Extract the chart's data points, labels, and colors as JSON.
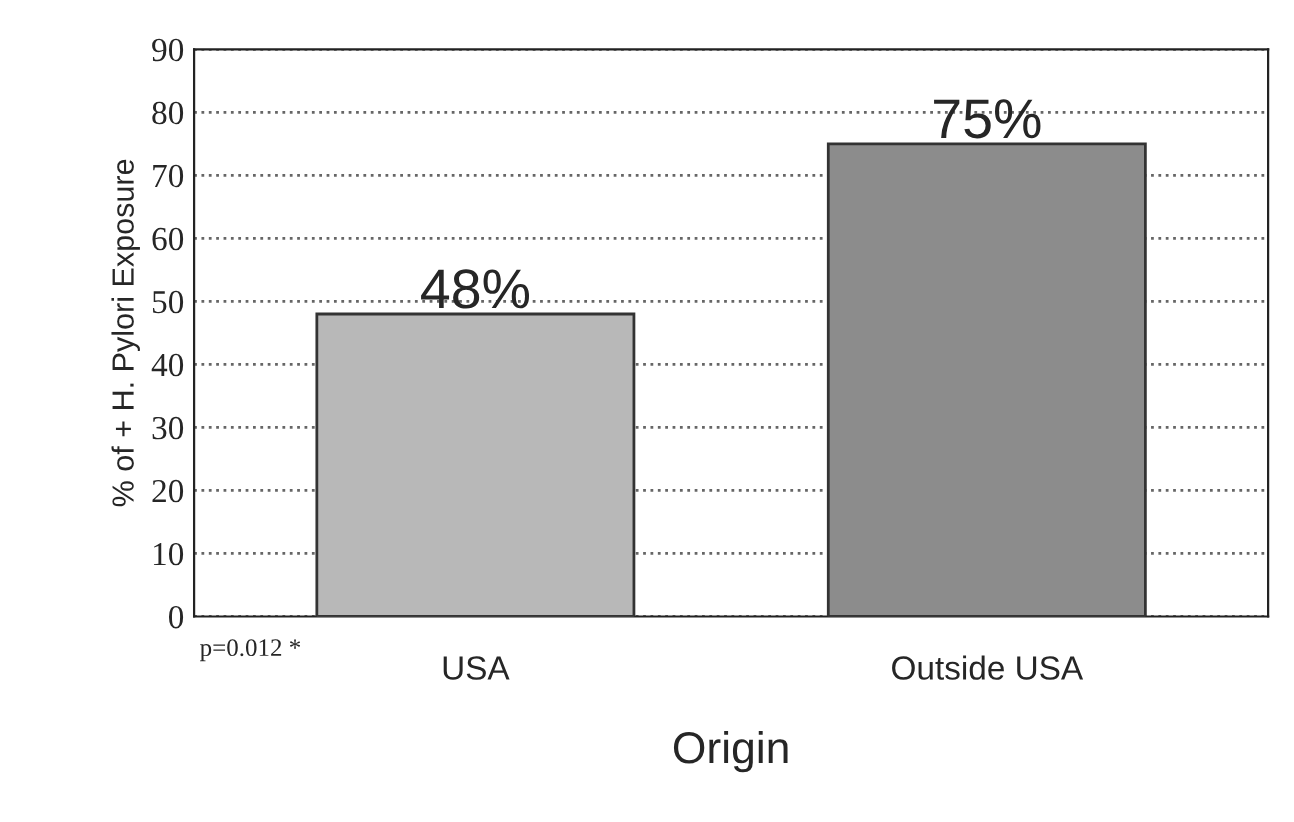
{
  "chart_data": {
    "type": "bar",
    "xlabel": "Origin",
    "ylabel": "% of + H. Pylori Exposure",
    "categories": [
      "USA",
      "Outside USA"
    ],
    "values": [
      48,
      75
    ],
    "colors": [
      "#b8b8b8",
      "#8c8c8c"
    ],
    "value_labels": [
      "48%",
      "75%"
    ],
    "ylim": [
      0,
      90
    ],
    "yticks": [
      0,
      10,
      20,
      30,
      40,
      50,
      60,
      70,
      80,
      90
    ],
    "grid": "y",
    "annotations": [
      "p=0.012 *"
    ]
  }
}
